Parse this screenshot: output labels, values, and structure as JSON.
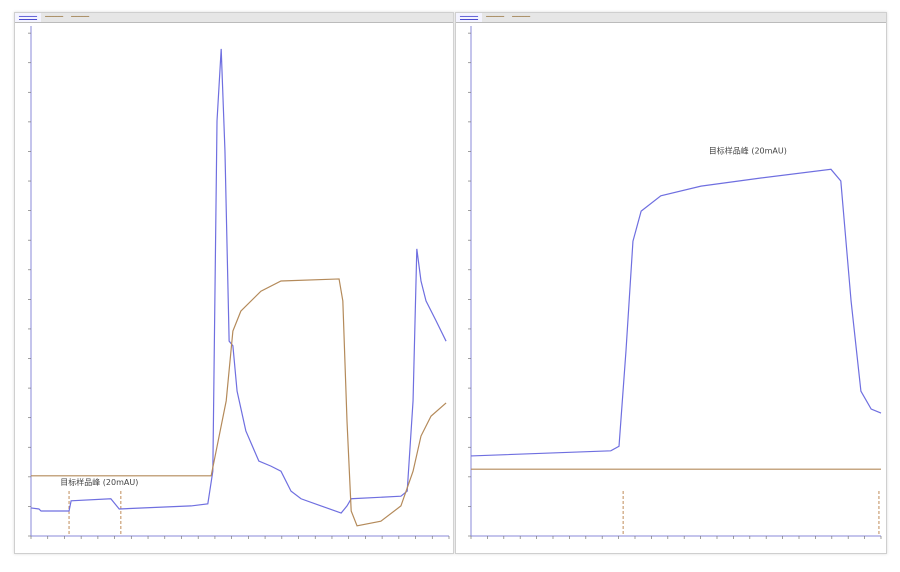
{
  "colors": {
    "blue": "#6f6fe0",
    "brown": "#b48a5a",
    "axis": "#8a8ad8",
    "marker": "#b07030"
  },
  "chart_data": [
    {
      "type": "line",
      "xlim": [
        0,
        100
      ],
      "ylim": [
        0,
        100
      ],
      "grid": false,
      "legend": "top-left tabs",
      "annotation": {
        "text": "目标样品峰 (20mAU)",
        "x": 7,
        "y": 10
      },
      "markers_x": [
        9.1,
        21.5
      ],
      "series": [
        {
          "color": "blue",
          "points": [
            [
              0,
              5.5
            ],
            [
              1.9,
              5.3
            ],
            [
              2.4,
              4.9
            ],
            [
              9.1,
              4.9
            ],
            [
              9.6,
              6.9
            ],
            [
              19.1,
              7.3
            ],
            [
              21.1,
              5.3
            ],
            [
              38.3,
              5.9
            ],
            [
              42.3,
              6.3
            ],
            [
              43.5,
              12.7
            ],
            [
              44.5,
              81.4
            ],
            [
              45.5,
              95.5
            ],
            [
              46.4,
              75.5
            ],
            [
              47.4,
              38.2
            ],
            [
              48.3,
              37.3
            ],
            [
              49.3,
              28.4
            ],
            [
              51.4,
              20.6
            ],
            [
              54.5,
              14.7
            ],
            [
              57.4,
              13.7
            ],
            [
              59.8,
              12.7
            ],
            [
              62.2,
              8.8
            ],
            [
              64.6,
              7.3
            ],
            [
              69.4,
              5.9
            ],
            [
              74.2,
              4.5
            ],
            [
              75.6,
              5.9
            ],
            [
              76.6,
              7.3
            ],
            [
              88.5,
              7.8
            ],
            [
              90,
              8.8
            ],
            [
              91.4,
              26.5
            ],
            [
              92.3,
              56.3
            ],
            [
              93.3,
              50
            ],
            [
              94.5,
              46.1
            ],
            [
              96.9,
              42.2
            ],
            [
              99.3,
              38.2
            ]
          ]
        },
        {
          "color": "brown",
          "points": [
            [
              0,
              11.8
            ],
            [
              43.1,
              11.8
            ],
            [
              46.7,
              26.5
            ],
            [
              48.3,
              40.2
            ],
            [
              50.2,
              44.1
            ],
            [
              55,
              48
            ],
            [
              59.8,
              50
            ],
            [
              73.7,
              50.4
            ],
            [
              74.6,
              46.1
            ],
            [
              75.6,
              22.5
            ],
            [
              76.6,
              4.9
            ],
            [
              78,
              2
            ],
            [
              83.7,
              2.9
            ],
            [
              88.5,
              5.9
            ],
            [
              91.4,
              12.7
            ],
            [
              93.3,
              19.6
            ],
            [
              95.7,
              23.5
            ],
            [
              99.3,
              26.1
            ]
          ]
        }
      ]
    },
    {
      "type": "line",
      "xlim": [
        0,
        100
      ],
      "ylim": [
        0,
        100
      ],
      "grid": false,
      "legend": "top-left tabs",
      "annotation": {
        "text": "目标样品峰 (20mAU)",
        "x": 58,
        "y": 75
      },
      "markers_x": [
        37.1,
        99.5
      ],
      "series": [
        {
          "color": "blue",
          "points": [
            [
              0,
              15.7
            ],
            [
              34.1,
              16.7
            ],
            [
              36.1,
              17.6
            ],
            [
              37.8,
              36.3
            ],
            [
              39.5,
              57.8
            ],
            [
              41.5,
              63.7
            ],
            [
              46.3,
              66.7
            ],
            [
              56.1,
              68.6
            ],
            [
              70.7,
              70.2
            ],
            [
              87.8,
              71.9
            ],
            [
              90.2,
              69.6
            ],
            [
              92.7,
              46.1
            ],
            [
              95.1,
              28.4
            ],
            [
              97.6,
              24.9
            ],
            [
              100,
              24.1
            ]
          ]
        },
        {
          "color": "brown",
          "points": [
            [
              0,
              13.1
            ],
            [
              100,
              13.1
            ]
          ]
        }
      ]
    }
  ]
}
